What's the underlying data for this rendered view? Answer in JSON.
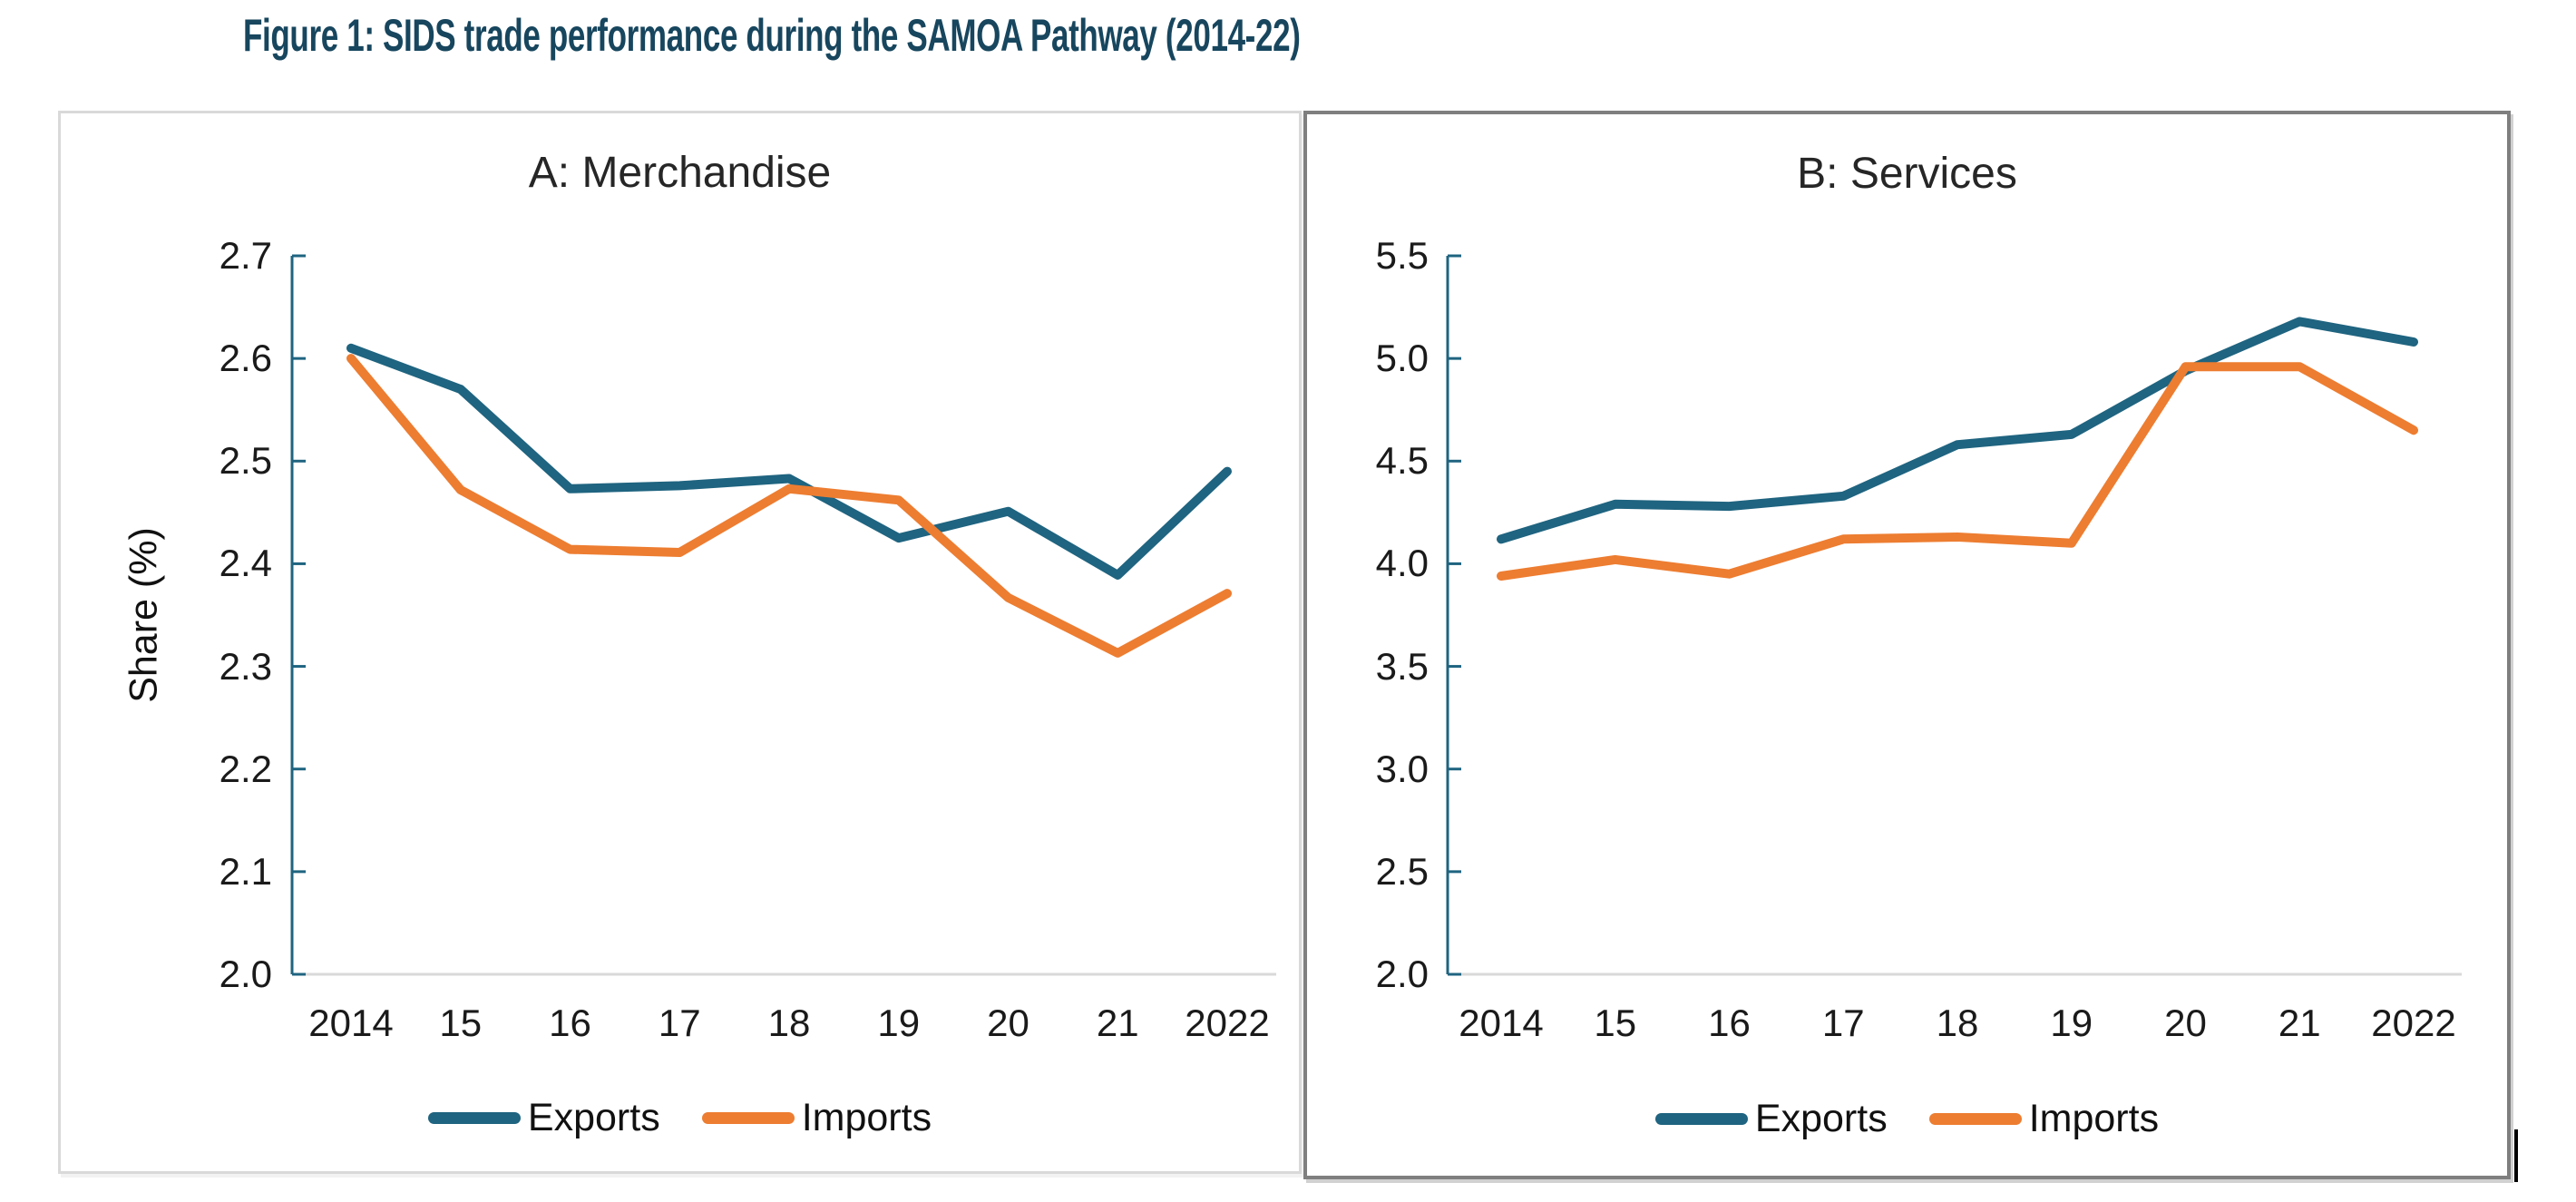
{
  "figure": {
    "title": "Figure 1: SIDS trade performance during the SAMOA Pathway (2014-22)",
    "title_color": "#17465E"
  },
  "colors": {
    "exports_line": "#1F6480",
    "imports_line": "#ED7D31",
    "y_axis": "#1F6480",
    "x_axis": "#D9D9D9",
    "tick_label": "#1A1A1A"
  },
  "chart_data": [
    {
      "panel": "A",
      "type": "line",
      "title": "A: Merchandise",
      "ylabel": "Share (%)",
      "xlabel": "",
      "categories": [
        "2014",
        "15",
        "16",
        "17",
        "18",
        "19",
        "20",
        "21",
        "2022"
      ],
      "series": [
        {
          "name": "Exports",
          "color": "#1F6480",
          "values": [
            2.61,
            2.57,
            2.473,
            2.476,
            2.483,
            2.425,
            2.451,
            2.389,
            2.49
          ]
        },
        {
          "name": "Imports",
          "color": "#ED7D31",
          "values": [
            2.6,
            2.472,
            2.414,
            2.411,
            2.473,
            2.462,
            2.367,
            2.313,
            2.371
          ]
        }
      ],
      "ylim": [
        2.0,
        2.7
      ],
      "ytick_step": 0.1,
      "ytick_labels": [
        "2.7",
        "2.6",
        "2.5",
        "2.4",
        "2.3",
        "2.2",
        "2.1",
        "2.0"
      ],
      "grid": false,
      "legend_position": "bottom"
    },
    {
      "panel": "B",
      "type": "line",
      "title": "B: Services",
      "ylabel": "",
      "xlabel": "",
      "categories": [
        "2014",
        "15",
        "16",
        "17",
        "18",
        "19",
        "20",
        "21",
        "2022"
      ],
      "series": [
        {
          "name": "Exports",
          "color": "#1F6480",
          "values": [
            4.12,
            4.29,
            4.28,
            4.33,
            4.58,
            4.63,
            4.94,
            5.18,
            5.08
          ]
        },
        {
          "name": "Imports",
          "color": "#ED7D31",
          "values": [
            3.94,
            4.02,
            3.95,
            4.12,
            4.13,
            4.1,
            4.96,
            4.96,
            4.65
          ]
        }
      ],
      "ylim": [
        2.0,
        5.5
      ],
      "ytick_step": 0.5,
      "ytick_labels": [
        "5.5",
        "5.0",
        "4.5",
        "4.0",
        "3.5",
        "3.0",
        "2.5",
        "2.0"
      ],
      "grid": false,
      "legend_position": "bottom"
    }
  ]
}
